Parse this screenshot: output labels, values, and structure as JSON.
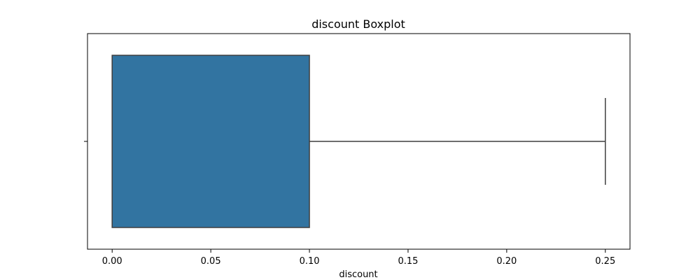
{
  "chart_data": {
    "type": "boxplot",
    "title": "discount Boxplot",
    "xlabel": "discount",
    "ylabel": "",
    "xlim": [
      -0.0125,
      0.2625
    ],
    "xticks": [
      "0.00",
      "0.05",
      "0.10",
      "0.15",
      "0.20",
      "0.25"
    ],
    "xtick_values": [
      0.0,
      0.05,
      0.1,
      0.15,
      0.2,
      0.25
    ],
    "orientation": "horizontal",
    "grid": false,
    "box": {
      "whisker_low": 0.0,
      "q1": 0.0,
      "median": 0.0,
      "q3": 0.1,
      "whisker_high": 0.25
    },
    "colors": {
      "box_fill": "#3274a1",
      "line": "#3f3f3f"
    }
  }
}
